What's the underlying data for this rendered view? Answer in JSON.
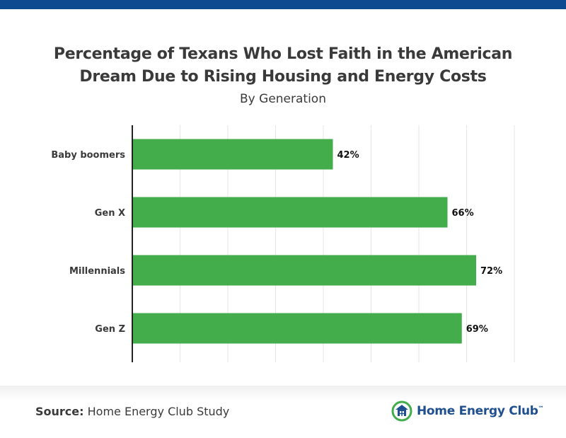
{
  "colors": {
    "top_bar": "#0d4a8f",
    "bar": "#43ad4c",
    "grid": "#e6e6e6",
    "text": "#3a3a3a",
    "brand_blue": "#1f4f8f",
    "brand_green": "#43ad4c"
  },
  "title_line1": "Percentage of Texans Who Lost Faith in the American",
  "title_line2": "Dream Due to Rising Housing and Energy Costs",
  "subtitle": "By Generation",
  "footer": {
    "source_label": "Source:",
    "source_text": "Home Energy Club Study",
    "logo_icon": "house-leaf-icon",
    "logo_text": "Home Energy Club",
    "logo_tm": "™"
  },
  "chart_data": {
    "type": "bar",
    "orientation": "horizontal",
    "categories": [
      "Baby boomers",
      "Gen X",
      "Millennials",
      "Gen Z"
    ],
    "values": [
      42,
      66,
      72,
      69
    ],
    "value_labels": [
      "42%",
      "66%",
      "72%",
      "69%"
    ],
    "xlim": [
      0,
      80
    ],
    "grid": true,
    "legend": "none"
  }
}
